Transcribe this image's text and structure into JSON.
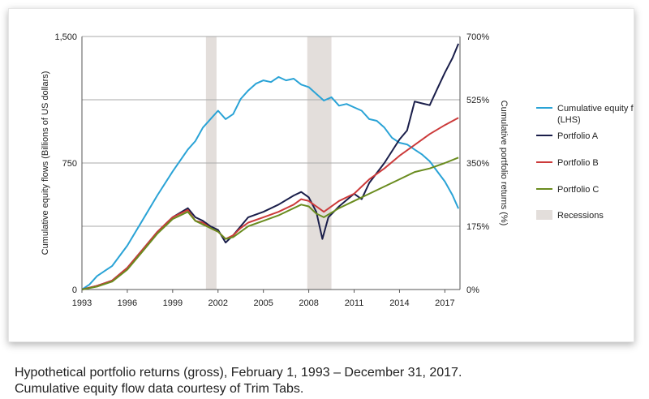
{
  "chart_data": {
    "type": "line",
    "x_ticks": [
      "1993",
      "1996",
      "1999",
      "2002",
      "2005",
      "2008",
      "2011",
      "2014",
      "2017"
    ],
    "x_range": [
      1993,
      2018
    ],
    "y_left": {
      "label": "Cumulative equity flows (Billions of US dollars)",
      "ticks": [
        "0",
        "750",
        "1,500"
      ],
      "range": [
        0,
        1500
      ]
    },
    "y_right": {
      "label": "Cumulative portfolio returns (%)",
      "ticks": [
        "0%",
        "175%",
        "350%",
        "525%",
        "700%"
      ],
      "range": [
        0,
        700
      ]
    },
    "gridlines": "horizontal",
    "legend_position": "right",
    "recessions": [
      {
        "start": 2001.2,
        "end": 2001.9
      },
      {
        "start": 2007.9,
        "end": 2009.5
      }
    ],
    "recession_label": "Recessions",
    "series": [
      {
        "name": "Cumulative equity flows (LHS)",
        "axis": "left",
        "color": "#2aa3d6",
        "x": [
          1993,
          1993.5,
          1994,
          1995,
          1996,
          1997,
          1998,
          1999,
          2000,
          2000.5,
          2001,
          2001.5,
          2002,
          2002.5,
          2003,
          2003.5,
          2004,
          2004.5,
          2005,
          2005.5,
          2006,
          2006.5,
          2007,
          2007.5,
          2008,
          2008.5,
          2009,
          2009.5,
          2010,
          2010.5,
          2011,
          2011.5,
          2012,
          2012.5,
          2013,
          2013.5,
          2014,
          2014.5,
          2015,
          2015.5,
          2016,
          2016.5,
          2017,
          2017.5,
          2017.9
        ],
        "y": [
          0,
          30,
          80,
          140,
          260,
          410,
          560,
          700,
          830,
          880,
          960,
          1010,
          1060,
          1010,
          1040,
          1130,
          1180,
          1220,
          1240,
          1230,
          1260,
          1240,
          1250,
          1215,
          1200,
          1160,
          1120,
          1140,
          1090,
          1100,
          1080,
          1060,
          1010,
          1000,
          960,
          900,
          870,
          860,
          830,
          800,
          760,
          700,
          640,
          560,
          480
        ]
      },
      {
        "name": "Portfolio A",
        "axis": "right",
        "color": "#1a1e4a",
        "x": [
          1993,
          1994,
          1995,
          1996,
          1997,
          1998,
          1999,
          2000,
          2000.5,
          2001,
          2001.5,
          2002,
          2002.5,
          2003,
          2003.5,
          2004,
          2005,
          2006,
          2007,
          2007.5,
          2008,
          2008.5,
          2008.9,
          2009.3,
          2010,
          2011,
          2011.5,
          2012,
          2013,
          2014,
          2014.5,
          2015,
          2015.5,
          2016,
          2016.5,
          2017,
          2017.5,
          2017.9
        ],
        "y": [
          0,
          10,
          25,
          60,
          110,
          160,
          200,
          225,
          200,
          190,
          175,
          165,
          130,
          150,
          175,
          200,
          215,
          235,
          260,
          270,
          255,
          215,
          140,
          200,
          230,
          265,
          250,
          295,
          350,
          415,
          440,
          520,
          515,
          510,
          555,
          600,
          640,
          680
        ]
      },
      {
        "name": "Portfolio B",
        "axis": "right",
        "color": "#cc3a3a",
        "x": [
          1993,
          1994,
          1995,
          1996,
          1997,
          1998,
          1999,
          2000,
          2000.5,
          2001,
          2001.5,
          2002,
          2002.5,
          2003,
          2003.5,
          2004,
          2005,
          2006,
          2007,
          2007.5,
          2008,
          2008.5,
          2009,
          2010,
          2011,
          2012,
          2013,
          2014,
          2015,
          2016,
          2017,
          2017.9
        ],
        "y": [
          0,
          10,
          25,
          60,
          110,
          160,
          200,
          220,
          190,
          185,
          170,
          160,
          140,
          150,
          170,
          185,
          200,
          215,
          235,
          250,
          245,
          230,
          215,
          245,
          265,
          305,
          335,
          370,
          400,
          430,
          455,
          475
        ]
      },
      {
        "name": "Portfolio C",
        "axis": "right",
        "color": "#6a8c1f",
        "x": [
          1993,
          1994,
          1995,
          1996,
          1997,
          1998,
          1999,
          2000,
          2000.5,
          2001,
          2001.5,
          2002,
          2002.5,
          2003,
          2003.5,
          2004,
          2005,
          2006,
          2007,
          2007.5,
          2008,
          2008.5,
          2009,
          2010,
          2011,
          2012,
          2013,
          2014,
          2015,
          2016,
          2017,
          2017.9
        ],
        "y": [
          0,
          8,
          22,
          55,
          105,
          155,
          195,
          215,
          190,
          180,
          170,
          160,
          140,
          145,
          160,
          175,
          190,
          205,
          225,
          235,
          230,
          210,
          200,
          225,
          245,
          265,
          285,
          305,
          325,
          335,
          350,
          365
        ]
      }
    ]
  },
  "caption": {
    "line1": "Hypothetical portfolio returns (gross), February 1, 1993 – December 31, 2017.",
    "line2": "Cumulative equity flow data courtesy of Trim Tabs."
  }
}
